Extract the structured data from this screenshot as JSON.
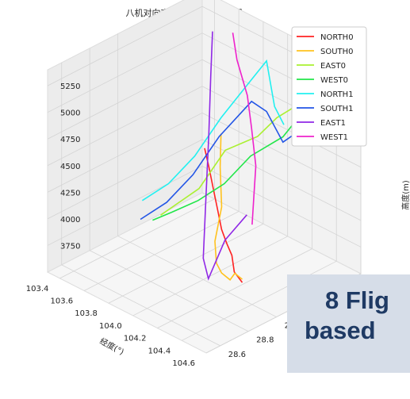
{
  "chart_data": {
    "type": "line3d",
    "title": "八机对向高度变更-三维示意图",
    "xlabel": "经度(°)",
    "ylabel": "",
    "zlabel": "高度(m)",
    "x_ticks": [
      "103.4",
      "103.6",
      "103.8",
      "104.0",
      "104.2",
      "104.4",
      "104.6"
    ],
    "y_ticks": [
      "28.6",
      "28.8",
      "29"
    ],
    "z_ticks": [
      "3750",
      "4000",
      "4250",
      "4500",
      "4750",
      "5000",
      "5250"
    ],
    "xlim": [
      103.3,
      104.6
    ],
    "ylim": [
      28.5,
      29.6
    ],
    "zlim": [
      3500,
      5400
    ],
    "grid": true,
    "legend_position": "top-right",
    "series": [
      {
        "name": "NORTH0",
        "color": "#ff2222",
        "points": [
          [
            103.55,
            29.4,
            4200
          ],
          [
            103.7,
            29.3,
            4180
          ],
          [
            103.85,
            29.2,
            4140
          ],
          [
            104.0,
            29.1,
            4100
          ],
          [
            104.15,
            29.0,
            4060
          ],
          [
            104.25,
            28.95,
            4020
          ],
          [
            104.35,
            28.9,
            4000
          ],
          [
            104.45,
            28.83,
            3950
          ],
          [
            104.55,
            28.8,
            3930
          ]
        ]
      },
      {
        "name": "SOUTH0",
        "color": "#ffc21e",
        "points": [
          [
            103.8,
            29.3,
            4550
          ],
          [
            103.85,
            29.25,
            4300
          ],
          [
            103.92,
            29.2,
            4000
          ],
          [
            103.98,
            29.1,
            3780
          ],
          [
            104.05,
            29.05,
            3650
          ],
          [
            104.15,
            29.0,
            3650
          ],
          [
            104.3,
            28.93,
            3720
          ],
          [
            104.42,
            28.86,
            3900
          ],
          [
            104.55,
            28.8,
            3960
          ]
        ]
      },
      {
        "name": "EAST0",
        "color": "#aaf030",
        "points": [
          [
            103.65,
            29.0,
            3900
          ],
          [
            103.75,
            29.05,
            4050
          ],
          [
            103.85,
            29.1,
            4200
          ],
          [
            103.95,
            29.2,
            4550
          ],
          [
            104.1,
            29.3,
            4700
          ],
          [
            104.2,
            29.35,
            4900
          ],
          [
            104.35,
            29.4,
            5100
          ],
          [
            104.45,
            29.45,
            5250
          ]
        ]
      },
      {
        "name": "WEST0",
        "color": "#22e64a",
        "points": [
          [
            103.7,
            28.9,
            3950
          ],
          [
            103.8,
            28.95,
            4050
          ],
          [
            103.9,
            29.05,
            4150
          ],
          [
            104.0,
            29.15,
            4300
          ],
          [
            104.1,
            29.25,
            4550
          ],
          [
            104.25,
            29.35,
            4750
          ],
          [
            104.35,
            29.4,
            5000
          ],
          [
            104.5,
            29.5,
            5150
          ]
        ]
      },
      {
        "name": "NORTH1",
        "color": "#22f0f0",
        "points": [
          [
            103.5,
            29.0,
            3950
          ],
          [
            103.6,
            29.1,
            4100
          ],
          [
            103.7,
            29.2,
            4350
          ],
          [
            103.8,
            29.3,
            4700
          ],
          [
            103.9,
            29.4,
            5000
          ],
          [
            104.0,
            29.45,
            5250
          ],
          [
            104.1,
            29.42,
            4900
          ],
          [
            104.2,
            29.4,
            4800
          ]
        ]
      },
      {
        "name": "SOUTH1",
        "color": "#2255e6",
        "points": [
          [
            103.6,
            28.9,
            3900
          ],
          [
            103.7,
            29.0,
            4050
          ],
          [
            103.8,
            29.1,
            4300
          ],
          [
            103.9,
            29.2,
            4650
          ],
          [
            104.05,
            29.3,
            5000
          ],
          [
            104.15,
            29.32,
            4950
          ],
          [
            104.25,
            29.35,
            4700
          ],
          [
            104.35,
            29.4,
            4850
          ]
        ]
      },
      {
        "name": "EAST1",
        "color": "#9028e6",
        "points": [
          [
            103.5,
            29.5,
            5200
          ],
          [
            103.6,
            29.4,
            4900
          ],
          [
            103.7,
            29.3,
            4500
          ],
          [
            103.85,
            29.15,
            4100
          ],
          [
            104.0,
            29.0,
            3700
          ],
          [
            104.1,
            28.95,
            3600
          ],
          [
            104.2,
            28.98,
            4000
          ],
          [
            104.3,
            29.05,
            4250
          ]
        ]
      },
      {
        "name": "WEST1",
        "color": "#ee22cc",
        "points": [
          [
            103.55,
            29.6,
            5150
          ],
          [
            103.7,
            29.5,
            5050
          ],
          [
            103.9,
            29.4,
            4900
          ],
          [
            104.05,
            29.3,
            4750
          ],
          [
            104.2,
            29.2,
            4550
          ],
          [
            104.3,
            29.1,
            4400
          ],
          [
            104.4,
            29.0,
            4250
          ]
        ]
      }
    ]
  },
  "caption": {
    "line1": "8 Flig",
    "line2": "based"
  }
}
